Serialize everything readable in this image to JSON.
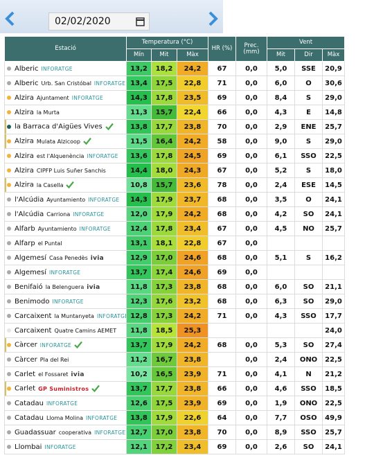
{
  "header": {
    "date": "02/02/2020"
  },
  "table": {
    "columns": {
      "station": "Estació",
      "temperature": "Temperatura (°C)",
      "humidity": "HR (%)",
      "precipitation": "Prec. (mm)",
      "wind": "Vent"
    },
    "subcolumns": [
      "Mín",
      "Mit",
      "Màx",
      "Mit",
      "Dir",
      "Màx"
    ],
    "rows": [
      {
        "name": "Alberic",
        "badge": "INFORATGE",
        "dot": "#a9a9a9",
        "values": [
          "13,2",
          "18,2",
          "24,2",
          "67",
          "0,0",
          "5,0",
          "SSE",
          "20,9"
        ]
      },
      {
        "name": "Alberic",
        "sub": "Urb. San Cristóbal",
        "badge": "INFORATGE",
        "dot": "#a9a9a9",
        "values": [
          "13,4",
          "17,5",
          "22,8",
          "71",
          "0,0",
          "6,0",
          "O",
          "30,6"
        ]
      },
      {
        "name": "Alzira",
        "sub": "Ajuntament",
        "badge": "INFORATGE",
        "dot": "#f0b43c",
        "values": [
          "14,3",
          "17,8",
          "23,5",
          "69",
          "0,0",
          "8,4",
          "S",
          "29,0"
        ]
      },
      {
        "name": "Alzira",
        "sub": "la Murta",
        "dot": "#f0b43c",
        "values": [
          "11,3",
          "15,7",
          "22,4",
          "66",
          "0,0",
          "4,3",
          "E",
          "14,8"
        ]
      },
      {
        "name": "la Barraca d'Aigües Vives",
        "verified": true,
        "dot": "#1d5e5e",
        "values": [
          "13,8",
          "17,7",
          "23,8",
          "70",
          "0,0",
          "2,9",
          "ENE",
          "25,7"
        ]
      },
      {
        "name": "Alzira",
        "sub": "Mulata Alzicoop",
        "verified": true,
        "dot": "#f0b43c",
        "values": [
          "11,5",
          "16,4",
          "24,2",
          "58",
          "0,0",
          "9,0",
          "S",
          "29,0"
        ]
      },
      {
        "name": "Alzira",
        "sub": "est l'Alquenència",
        "badge": "INFORATGE",
        "dot": "#f0b43c",
        "values": [
          "13,6",
          "17,8",
          "24,5",
          "69",
          "0,0",
          "6,1",
          "SSO",
          "22,5"
        ]
      },
      {
        "name": "Alzira",
        "sub": "CIPFP Luis Suñer Sanchis",
        "dot": "#f0b43c",
        "values": [
          "14,4",
          "18,0",
          "24,3",
          "67",
          "0,0",
          "5,2",
          "S",
          "18,0"
        ]
      },
      {
        "name": "Alzira",
        "sub": "la Casella",
        "verified": true,
        "dot": "#f0b43c",
        "values": [
          "10,8",
          "15,7",
          "23,6",
          "78",
          "0,0",
          "2,4",
          "ESE",
          "14,5"
        ]
      },
      {
        "name": "l'Alcúdia",
        "sub": "Ayuntamiento",
        "badge": "INFORATGE",
        "dot": "#a9a9a9",
        "values": [
          "14,3",
          "17,9",
          "23,7",
          "68",
          "0,0",
          "3,5",
          "O",
          "24,1"
        ]
      },
      {
        "name": "l'Alcúdia",
        "sub": "Carriona",
        "badge": "INFORATGE",
        "dot": "#a9a9a9",
        "values": [
          "12,0",
          "17,9",
          "24,2",
          "68",
          "0,0",
          "4,2",
          "SO",
          "24,1"
        ]
      },
      {
        "name": "Alfarb",
        "sub": "Ayuntamiento",
        "badge": "INFORATGE",
        "dot": "#a9a9a9",
        "values": [
          "12,4",
          "17,8",
          "23,4",
          "67",
          "0,0",
          "4,5",
          "NO",
          "25,7"
        ]
      },
      {
        "name": "Alfarp",
        "sub": "el Puntal",
        "dot": "#a9a9a9",
        "values": [
          "13,1",
          "18,1",
          "22,8",
          "67",
          "0,0",
          null,
          null,
          null
        ]
      },
      {
        "name": "Algemesí",
        "sub": "Casa Penedès",
        "badge": "ivia",
        "dot": "#a9a9a9",
        "values": [
          "12,9",
          "17,0",
          "24,6",
          "68",
          "0,0",
          "5,1",
          "S",
          "16,2"
        ]
      },
      {
        "name": "Algemesí",
        "badge": "INFORATGE",
        "dot": "#a9a9a9",
        "values": [
          "13,7",
          "17,4",
          "24,6",
          "69",
          "0,0",
          null,
          null,
          null
        ]
      },
      {
        "name": "Benifaió",
        "sub": "la Belenguera",
        "badge": "ivia",
        "dot": "#a9a9a9",
        "values": [
          "11,8",
          "17,3",
          "23,8",
          "68",
          "0,0",
          "6,0",
          "SO",
          "21,1"
        ]
      },
      {
        "name": "Benimodo",
        "badge": "INFORATGE",
        "dot": "#a9a9a9",
        "values": [
          "12,3",
          "17,6",
          "23,2",
          "68",
          "0,0",
          "6,3",
          "SO",
          "29,0"
        ]
      },
      {
        "name": "Carcaixent",
        "sub": "la Muntanyeta",
        "badge": "INFORATGE",
        "dot": "#a9a9a9",
        "values": [
          "12,8",
          "17,3",
          "24,2",
          "71",
          "0,0",
          "4,3",
          "SSO",
          "17,7"
        ]
      },
      {
        "name": "Carcaixent",
        "sub": "Quatre Camins AEMET",
        "dot": "#e6e6e6",
        "values": [
          "11,8",
          "18,5",
          "25,3",
          null,
          null,
          null,
          null,
          "24,0"
        ]
      },
      {
        "name": "Càrcer",
        "badge": "INFORATGE",
        "verified": true,
        "dot": "#f0b43c",
        "values": [
          "13,7",
          "17,9",
          "24,2",
          "68",
          "0,0",
          "5,3",
          "SO",
          "27,4"
        ]
      },
      {
        "name": "Càrcer",
        "sub": "Pla del Rei",
        "dot": "#a9a9a9",
        "values": [
          "11,2",
          "16,7",
          "23,8",
          null,
          "0,0",
          "2,4",
          "ONO",
          "22,5"
        ]
      },
      {
        "name": "Carlet",
        "sub": "el Fossaret",
        "badge": "ivia",
        "dot": "#a9a9a9",
        "values": [
          "10,2",
          "16,5",
          "23,9",
          "71",
          "0,0",
          "4,1",
          "N",
          "21,2"
        ]
      },
      {
        "name": "Carlet",
        "badge": "GP Suministros",
        "verified": true,
        "dot": "#f0b43c",
        "values": [
          "13,7",
          "17,7",
          "23,8",
          "66",
          "0,0",
          "4,6",
          "SSO",
          "18,5"
        ]
      },
      {
        "name": "Catadau",
        "badge": "INFORATGE",
        "dot": "#a9a9a9",
        "values": [
          "12,6",
          "17,5",
          "23,9",
          "69",
          "0,0",
          "1,9",
          "ONO",
          "22,5"
        ]
      },
      {
        "name": "Catadau",
        "sub": "Lloma Molina",
        "badge": "INFORATGE",
        "dot": "#a9a9a9",
        "values": [
          "13,8",
          "17,9",
          "22,6",
          "64",
          "0,0",
          "7,7",
          "OSO",
          "49,9"
        ]
      },
      {
        "name": "Guadassuar",
        "sub": "cooperativa",
        "badge": "INFORATGE",
        "dot": "#a9a9a9",
        "values": [
          "12,7",
          "17,0",
          "23,8",
          "70",
          "0,0",
          "8,9",
          "SSO",
          "25,7"
        ]
      },
      {
        "name": "Llombai",
        "badge": "INFORATGE",
        "dot": "#a9a9a9",
        "values": [
          "12,1",
          "17,2",
          "23,4",
          "69",
          "0,0",
          "2,6",
          "SO",
          "24,1"
        ]
      }
    ]
  }
}
